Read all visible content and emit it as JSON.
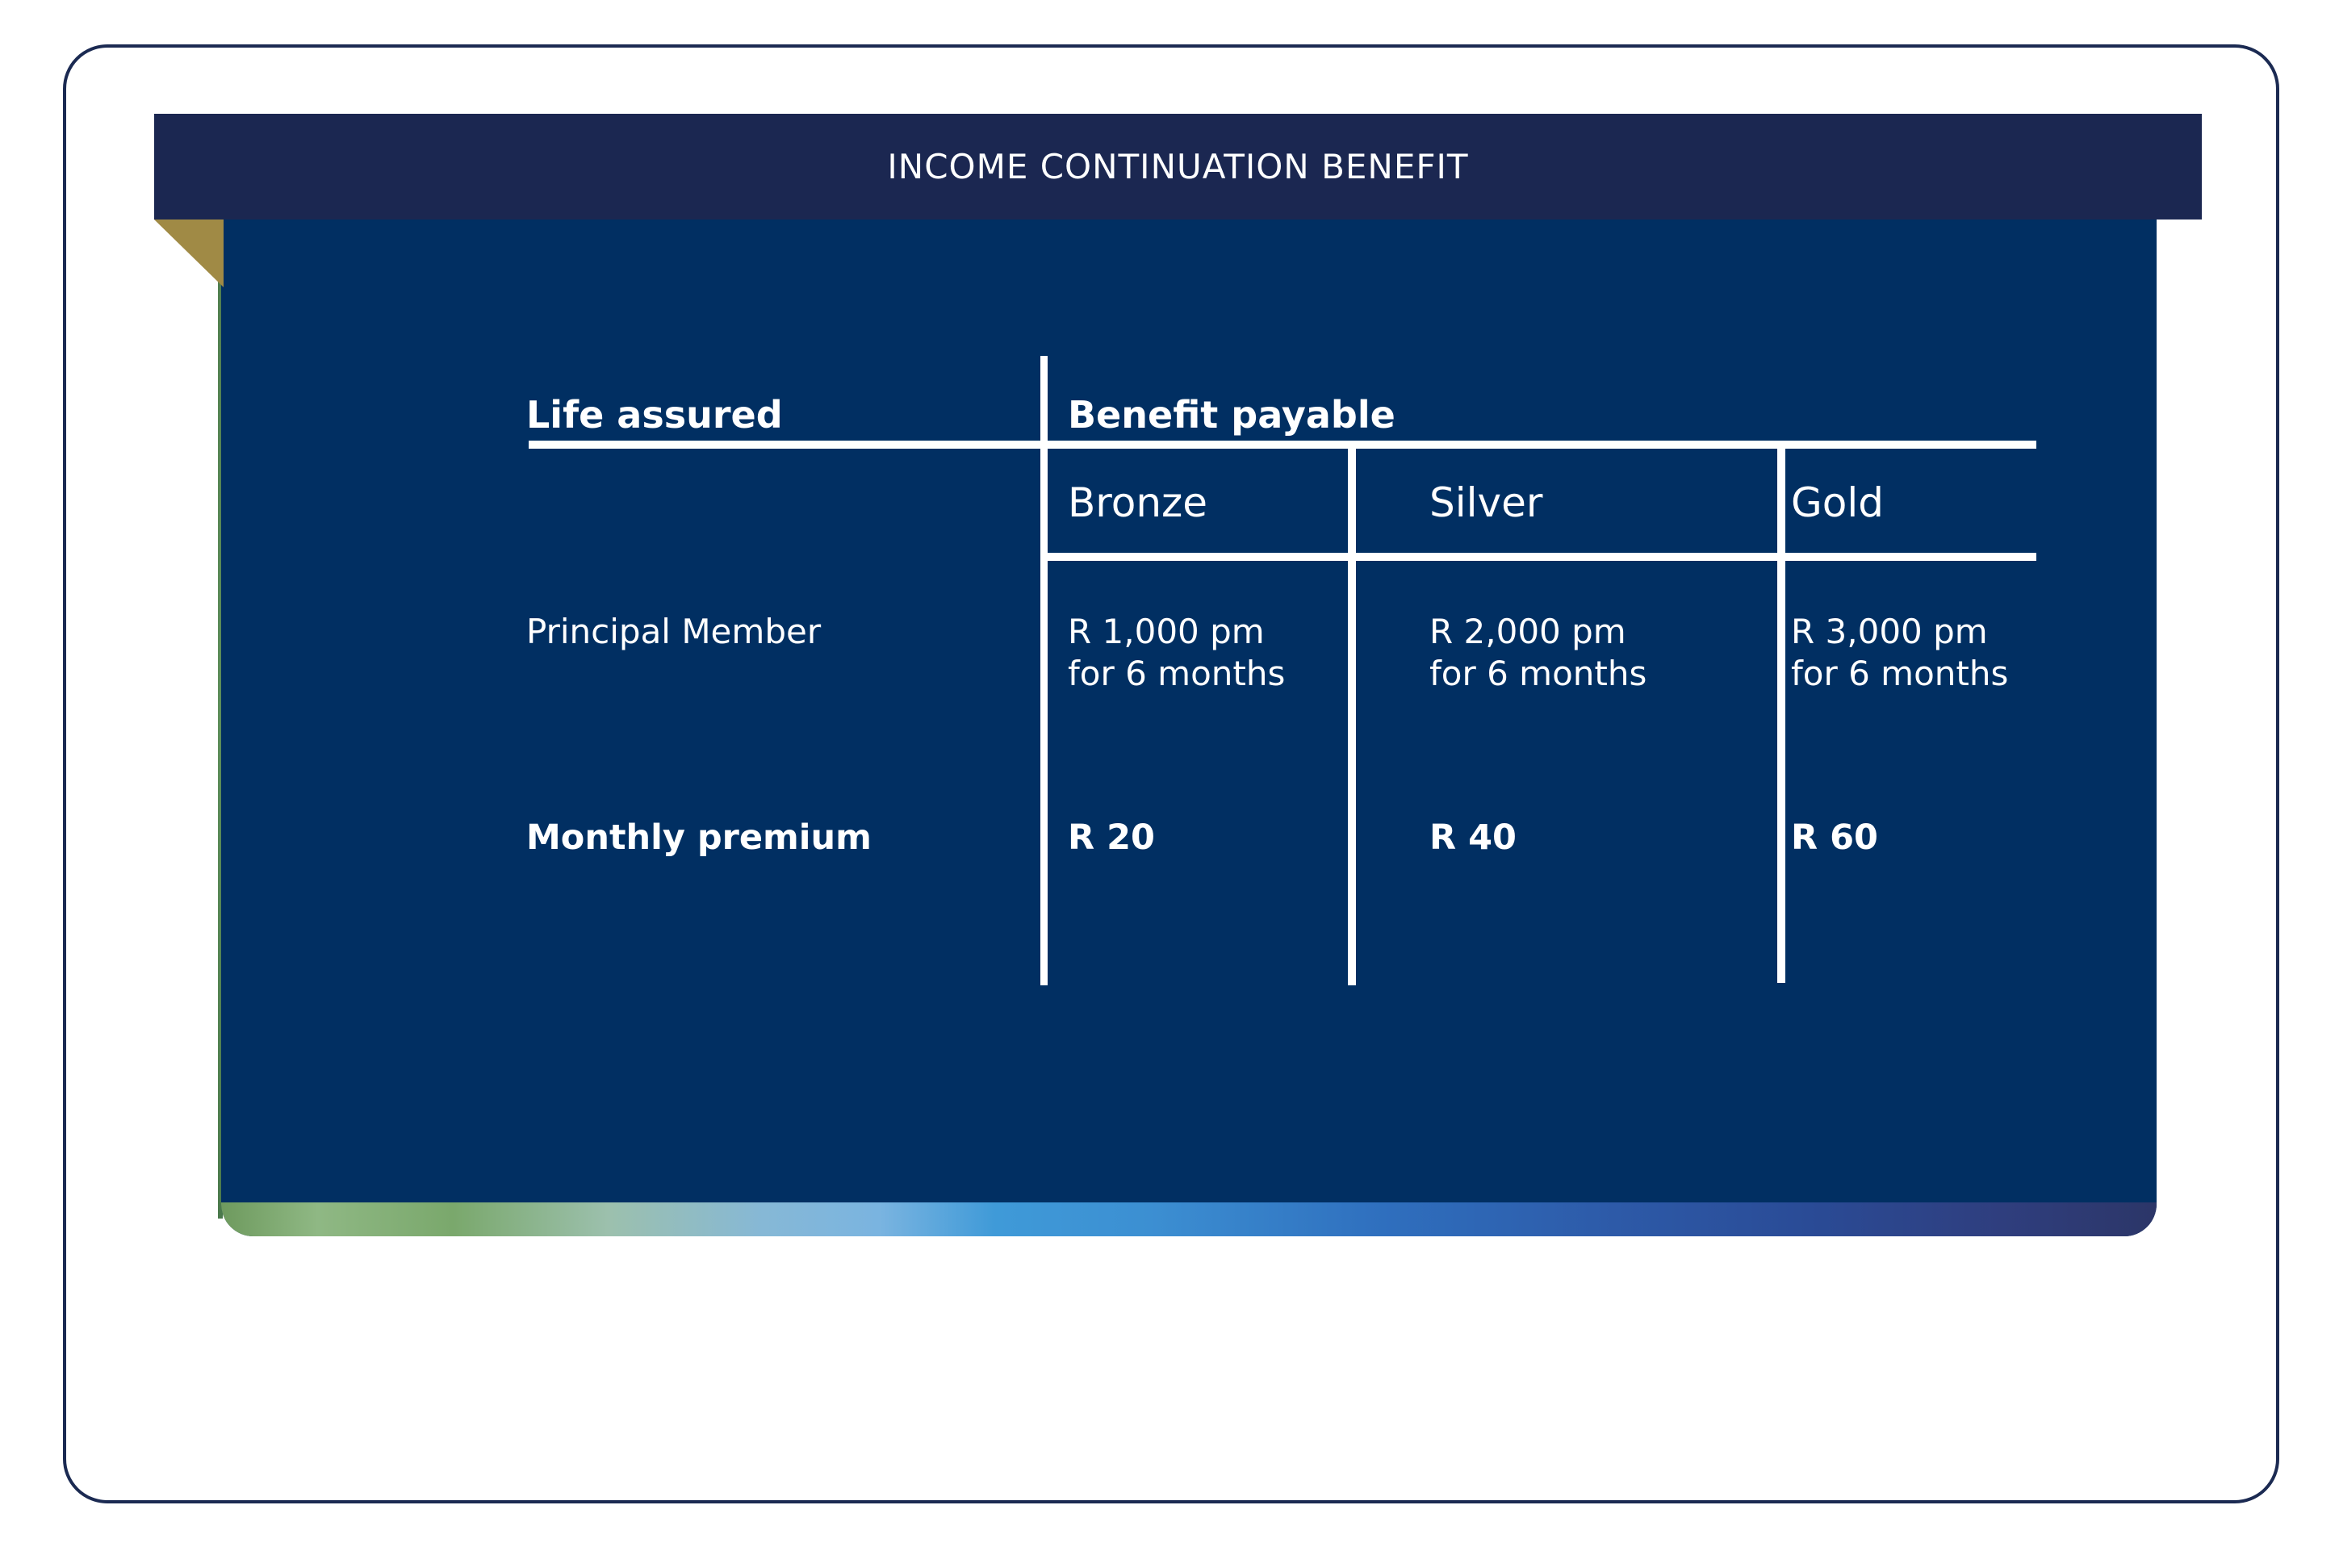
{
  "header": {
    "title": "INCOME CONTINUATION BENEFIT"
  },
  "table": {
    "col_life_assured": "Life assured",
    "col_benefit_payable": "Benefit payable",
    "tiers": [
      "Bronze",
      "Silver",
      "Gold"
    ],
    "rows": [
      {
        "label": "Principal Member",
        "values": [
          [
            "R 1,000 pm",
            "for 6 months"
          ],
          [
            "R 2,000 pm",
            "for 6 months"
          ],
          [
            "R 3,000 pm",
            "for 6 months"
          ]
        ]
      },
      {
        "label": "Monthly premium",
        "values": [
          "R 20",
          "R 40",
          "R 60"
        ]
      }
    ]
  },
  "colors": {
    "header_bar": "#1b2751",
    "panel": "#012f62",
    "text": "#ffffff",
    "frame": "#1b2a52",
    "fold": "#a08a45"
  }
}
